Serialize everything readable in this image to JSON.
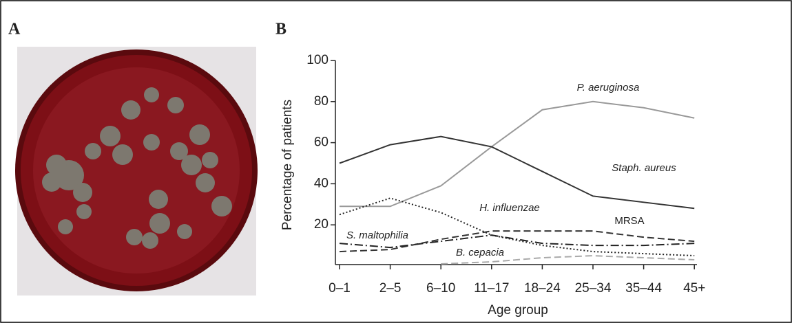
{
  "panels": [
    "A",
    "B"
  ],
  "chart_data": {
    "type": "line",
    "xlabel": "Age group",
    "ylabel": "Percentage of patients",
    "categories": [
      "0–1",
      "2–5",
      "6–10",
      "11–17",
      "18–24",
      "25–34",
      "35–44",
      "45+"
    ],
    "ylim": [
      0,
      100
    ],
    "yticks": [
      20,
      40,
      60,
      80,
      100
    ],
    "grid": false,
    "series": [
      {
        "name": "P. aeruginosa",
        "color": "#999999",
        "style": "solid",
        "values": [
          29,
          29,
          39,
          58,
          76,
          80,
          77,
          72
        ]
      },
      {
        "name": "Staph. aureus",
        "color": "#333333",
        "style": "solid",
        "values": [
          50,
          59,
          63,
          58,
          46,
          34,
          31,
          28
        ]
      },
      {
        "name": "H. influenzae",
        "color": "#222222",
        "style": "dotted",
        "values": [
          25,
          33,
          26,
          15,
          10,
          7,
          6,
          5
        ]
      },
      {
        "name": "MRSA",
        "color": "#333333",
        "style": "dashed",
        "values": [
          7,
          8,
          13,
          17,
          17,
          17,
          14,
          12
        ]
      },
      {
        "name": "S. maltophilia",
        "color": "#222222",
        "style": "dashdot",
        "values": [
          11,
          9,
          12,
          15,
          11,
          10,
          10,
          11
        ]
      },
      {
        "name": "B. cepacia",
        "color": "#aaaaaa",
        "style": "dashed",
        "values": [
          null,
          null,
          1,
          2,
          4,
          5,
          4,
          3
        ]
      }
    ]
  }
}
